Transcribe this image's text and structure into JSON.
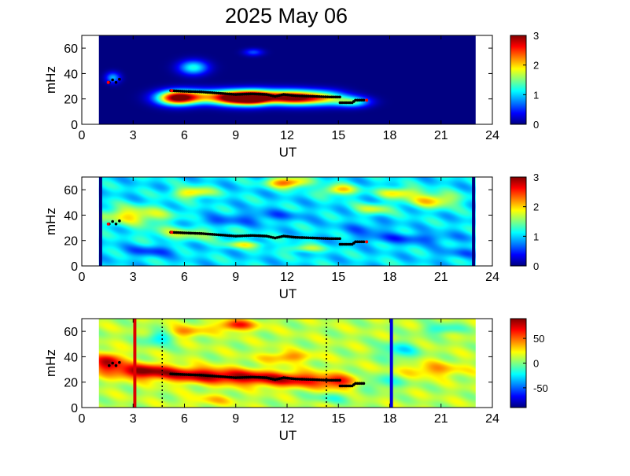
{
  "figure_title": "2025 May 06",
  "chart_data": [
    {
      "type": "heatmap",
      "name": "panel-1",
      "xlabel": "UT",
      "ylabel": "mHz",
      "xlim": [
        0,
        24
      ],
      "ylim": [
        0,
        70
      ],
      "xticks": [
        0,
        3,
        6,
        9,
        12,
        15,
        18,
        21,
        24
      ],
      "yticks": [
        0,
        20,
        40,
        60
      ],
      "data_xrange": [
        1,
        23
      ],
      "colorbar": {
        "range": [
          0,
          3
        ],
        "ticks": [
          0,
          1,
          2,
          3
        ]
      },
      "background_level": 0.0,
      "blobs": [
        {
          "x": 5.5,
          "y": 21,
          "sx": 0.8,
          "sy": 4,
          "v": 2.6
        },
        {
          "x": 8.8,
          "y": 21,
          "sx": 0.8,
          "sy": 4,
          "v": 2.5
        },
        {
          "x": 10.0,
          "y": 21,
          "sx": 0.7,
          "sy": 4,
          "v": 2.4
        },
        {
          "x": 12.5,
          "y": 21,
          "sx": 1.0,
          "sy": 4,
          "v": 2.3
        },
        {
          "x": 7.0,
          "y": 22,
          "sx": 1.2,
          "sy": 4,
          "v": 1.6
        },
        {
          "x": 11.0,
          "y": 22,
          "sx": 1.2,
          "sy": 4,
          "v": 1.6
        },
        {
          "x": 14.2,
          "y": 21,
          "sx": 0.9,
          "sy": 4,
          "v": 1.5
        },
        {
          "x": 15.8,
          "y": 18,
          "sx": 0.7,
          "sy": 3,
          "v": 1.3
        },
        {
          "x": 6.5,
          "y": 45,
          "sx": 0.6,
          "sy": 4,
          "v": 1.2
        },
        {
          "x": 1.8,
          "y": 37,
          "sx": 0.3,
          "sy": 3,
          "v": 0.9
        },
        {
          "x": 10.0,
          "y": 57,
          "sx": 0.4,
          "sy": 2,
          "v": 0.6
        }
      ],
      "stripes": []
    },
    {
      "type": "heatmap",
      "name": "panel-2",
      "xlabel": "UT",
      "ylabel": "mHz",
      "xlim": [
        0,
        24
      ],
      "ylim": [
        0,
        70
      ],
      "xticks": [
        0,
        3,
        6,
        9,
        12,
        15,
        18,
        21,
        24
      ],
      "yticks": [
        0,
        20,
        40,
        60
      ],
      "data_xrange": [
        1,
        23
      ],
      "colorbar": {
        "range": [
          0,
          3
        ],
        "ticks": [
          0,
          1,
          2,
          3
        ]
      },
      "background_level": 1.05,
      "blobs": [
        {
          "x": 3.0,
          "y": 40,
          "sx": 1.5,
          "sy": 5,
          "v": 0.9
        },
        {
          "x": 6.5,
          "y": 58,
          "sx": 0.8,
          "sy": 3,
          "v": 1.0
        },
        {
          "x": 12.0,
          "y": 66,
          "sx": 0.8,
          "sy": 3,
          "v": 1.4
        },
        {
          "x": 15.0,
          "y": 60,
          "sx": 0.7,
          "sy": 3,
          "v": 1.0
        },
        {
          "x": 18.5,
          "y": 58,
          "sx": 0.8,
          "sy": 3,
          "v": 0.9
        },
        {
          "x": 20.5,
          "y": 52,
          "sx": 1.0,
          "sy": 4,
          "v": 1.0
        },
        {
          "x": 17.0,
          "y": 45,
          "sx": 0.7,
          "sy": 3,
          "v": 0.7
        },
        {
          "x": 6.0,
          "y": 26,
          "sx": 1.5,
          "sy": 4,
          "v": 0.6
        },
        {
          "x": 9.5,
          "y": 17,
          "sx": 0.8,
          "sy": 2,
          "v": 0.7
        },
        {
          "x": 13.0,
          "y": 14,
          "sx": 0.8,
          "sy": 2,
          "v": 0.6
        },
        {
          "x": 4.0,
          "y": 12,
          "sx": 1.0,
          "sy": 3,
          "v": -0.5
        },
        {
          "x": 8.0,
          "y": 35,
          "sx": 1.5,
          "sy": 3,
          "v": -0.35
        },
        {
          "x": 11.0,
          "y": 40,
          "sx": 1.5,
          "sy": 3,
          "v": -0.35
        },
        {
          "x": 19.0,
          "y": 22,
          "sx": 2.0,
          "sy": 3,
          "v": -0.45
        },
        {
          "x": 16.5,
          "y": 30,
          "sx": 1.0,
          "sy": 4,
          "v": -0.3
        },
        {
          "x": 22.0,
          "y": 10,
          "sx": 1.0,
          "sy": 3,
          "v": -0.3
        }
      ],
      "stripes": [
        {
          "x": 1.1,
          "width": 0.18,
          "color": "#000080"
        },
        {
          "x": 22.9,
          "width": 0.18,
          "color": "#000080"
        }
      ]
    },
    {
      "type": "heatmap",
      "name": "panel-3",
      "xlabel": "UT",
      "ylabel": "mHz",
      "xlim": [
        0,
        24
      ],
      "ylim": [
        0,
        70
      ],
      "xticks": [
        0,
        3,
        6,
        9,
        12,
        15,
        18,
        21,
        24
      ],
      "yticks": [
        0,
        20,
        40,
        60
      ],
      "data_xrange": [
        1,
        23
      ],
      "colorbar": {
        "range": [
          -90,
          90
        ],
        "ticks": [
          50,
          0,
          -50
        ]
      },
      "background_level": 10,
      "blobs": [
        {
          "x": 1.5,
          "y": 36,
          "sx": 0.6,
          "sy": 5,
          "v": 70
        },
        {
          "x": 3.5,
          "y": 29,
          "sx": 1.2,
          "sy": 4,
          "v": 75
        },
        {
          "x": 6.5,
          "y": 26,
          "sx": 1.5,
          "sy": 4,
          "v": 65
        },
        {
          "x": 9.5,
          "y": 24,
          "sx": 1.5,
          "sy": 4,
          "v": 60
        },
        {
          "x": 12.5,
          "y": 22,
          "sx": 1.5,
          "sy": 4,
          "v": 58
        },
        {
          "x": 15.0,
          "y": 20,
          "sx": 0.8,
          "sy": 4,
          "v": 45
        },
        {
          "x": 9.0,
          "y": 65,
          "sx": 0.8,
          "sy": 3,
          "v": 55
        },
        {
          "x": 12.0,
          "y": 40,
          "sx": 1.0,
          "sy": 3,
          "v": 35
        },
        {
          "x": 6.0,
          "y": 60,
          "sx": 0.8,
          "sy": 3,
          "v": 35
        },
        {
          "x": 4.5,
          "y": 55,
          "sx": 0.6,
          "sy": 4,
          "v": -40
        },
        {
          "x": 18.5,
          "y": 45,
          "sx": 0.8,
          "sy": 5,
          "v": -35
        },
        {
          "x": 21.0,
          "y": 62,
          "sx": 0.8,
          "sy": 3,
          "v": -30
        },
        {
          "x": 17.5,
          "y": 20,
          "sx": 1.0,
          "sy": 4,
          "v": -25
        },
        {
          "x": 20.5,
          "y": 30,
          "sx": 1.2,
          "sy": 4,
          "v": 30
        },
        {
          "x": 14.5,
          "y": 8,
          "sx": 1.0,
          "sy": 3,
          "v": -20
        },
        {
          "x": 7.5,
          "y": 6,
          "sx": 1.0,
          "sy": 3,
          "v": 20
        }
      ],
      "stripes": [
        {
          "x": 3.1,
          "width": 0.18,
          "color": "#dd0000"
        },
        {
          "x": 18.1,
          "width": 0.18,
          "color": "#0000dd"
        }
      ],
      "dotted_lines": [
        4.7,
        14.3
      ]
    }
  ],
  "track": {
    "main": [
      [
        5.2,
        26.5
      ],
      [
        6.0,
        26.0
      ],
      [
        7.0,
        25.5
      ],
      [
        8.0,
        24.5
      ],
      [
        9.0,
        23.5
      ],
      [
        10.0,
        24.0
      ],
      [
        10.8,
        23.5
      ],
      [
        11.3,
        22.0
      ],
      [
        11.8,
        23.5
      ],
      [
        12.5,
        22.5
      ],
      [
        13.5,
        22.0
      ],
      [
        14.5,
        21.5
      ],
      [
        15.2,
        21.5
      ]
    ],
    "low": [
      [
        15.1,
        17.0
      ],
      [
        15.8,
        17.0
      ],
      [
        16.0,
        19.0
      ],
      [
        16.6,
        19.0
      ]
    ],
    "early": [
      [
        1.6,
        33.0
      ],
      [
        1.8,
        35.0
      ],
      [
        2.0,
        33.0
      ],
      [
        2.2,
        35.5
      ]
    ],
    "red_marks": [
      [
        1.55,
        33.0
      ],
      [
        5.25,
        26.5
      ],
      [
        16.65,
        19.0
      ]
    ]
  }
}
